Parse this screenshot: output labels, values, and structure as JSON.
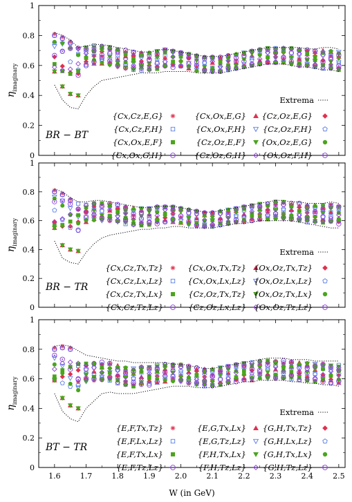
{
  "chart_data": [
    {
      "type": "scatter",
      "panel_label": "BR − BT",
      "xlabel": "",
      "ylabel": "η_imaginary",
      "xlim": [
        1.55,
        2.52
      ],
      "ylim": [
        0,
        1
      ],
      "yticks": [
        "0",
        "0.2",
        "0.4",
        "0.6",
        "0.8",
        "1"
      ],
      "legend_placement": "bottom-right",
      "extrema_label": "Extrema",
      "legend_entries": [
        "{Cx,Cz,E,G}",
        "{Cx,Ox,E,G}",
        "{Cz,Oz,E,G}",
        "{Cx,Cz,F,H}",
        "{Cx,Ox,F,H}",
        "{Cz,Oz,F,H}",
        "{Cx,Ox,E,F}",
        "{Cz,Oz,E,F}",
        "{Ox,Oz,E,G}",
        "{Cx,Ox,G,H}",
        "{Cz,Oz,G,H}",
        "{Ox,Oz,F,H}"
      ],
      "x": [
        1.6,
        1.625,
        1.65,
        1.675,
        1.7,
        1.725,
        1.75,
        1.775,
        1.8,
        1.825,
        1.85,
        1.875,
        1.9,
        1.925,
        1.95,
        1.975,
        2.0,
        2.025,
        2.05,
        2.075,
        2.1,
        2.125,
        2.15,
        2.175,
        2.2,
        2.225,
        2.25,
        2.275,
        2.3,
        2.325,
        2.35,
        2.375,
        2.4,
        2.425,
        2.45,
        2.475,
        2.5
      ],
      "extrema_upper": [
        0.82,
        0.8,
        0.77,
        0.72,
        0.73,
        0.74,
        0.74,
        0.73,
        0.72,
        0.71,
        0.7,
        0.69,
        0.69,
        0.7,
        0.71,
        0.7,
        0.69,
        0.68,
        0.67,
        0.66,
        0.66,
        0.66,
        0.67,
        0.68,
        0.69,
        0.7,
        0.71,
        0.72,
        0.72,
        0.72,
        0.72,
        0.72,
        0.71,
        0.71,
        0.72,
        0.72,
        0.71
      ],
      "extrema_lower": [
        0.47,
        0.37,
        0.32,
        0.31,
        0.4,
        0.46,
        0.5,
        0.51,
        0.52,
        0.53,
        0.54,
        0.55,
        0.55,
        0.55,
        0.56,
        0.56,
        0.56,
        0.56,
        0.55,
        0.55,
        0.55,
        0.55,
        0.56,
        0.57,
        0.58,
        0.59,
        0.6,
        0.61,
        0.61,
        0.61,
        0.6,
        0.59,
        0.59,
        0.58,
        0.57,
        0.57,
        0.56
      ],
      "band_mid": [
        0.68,
        0.66,
        0.64,
        0.63,
        0.66,
        0.67,
        0.67,
        0.66,
        0.65,
        0.64,
        0.63,
        0.63,
        0.63,
        0.64,
        0.65,
        0.65,
        0.65,
        0.64,
        0.62,
        0.61,
        0.61,
        0.61,
        0.62,
        0.63,
        0.64,
        0.65,
        0.65,
        0.66,
        0.66,
        0.66,
        0.66,
        0.65,
        0.65,
        0.64,
        0.64,
        0.64,
        0.63
      ],
      "band_half_width": 0.07
    },
    {
      "type": "scatter",
      "panel_label": "BR − TR",
      "xlabel": "",
      "ylabel": "η_imaginary",
      "xlim": [
        1.55,
        2.52
      ],
      "ylim": [
        0,
        1
      ],
      "yticks": [
        "0",
        "0.2",
        "0.4",
        "0.6",
        "0.8",
        "1"
      ],
      "legend_placement": "bottom-right",
      "extrema_label": "Extrema",
      "legend_entries": [
        "{Cx,Cz,Tx,Tz}",
        "{Cx,Ox,Tx,Tz}",
        "{Ox,Oz,Tx,Tz}",
        "{Cx,Cz,Lx,Lz}",
        "{Cx,Ox,Lx,Lz}",
        "{Ox,Oz,Lx,Lz}",
        "{Cx,Cz,Tx,Lx}",
        "{Cz,Oz,Tx,Tz}",
        "{Ox,Oz,Tx,Lx}",
        "{Cx,Cz,Tz,Lz}",
        "{Cz,Oz,Lx,Lz}",
        "{Ox,Oz,Tz,Lz}"
      ],
      "x": [
        1.6,
        1.625,
        1.65,
        1.675,
        1.7,
        1.725,
        1.75,
        1.775,
        1.8,
        1.825,
        1.85,
        1.875,
        1.9,
        1.925,
        1.95,
        1.975,
        2.0,
        2.025,
        2.05,
        2.075,
        2.1,
        2.125,
        2.15,
        2.175,
        2.2,
        2.225,
        2.25,
        2.275,
        2.3,
        2.325,
        2.35,
        2.375,
        2.4,
        2.425,
        2.45,
        2.475,
        2.5
      ],
      "extrema_upper": [
        0.82,
        0.8,
        0.76,
        0.73,
        0.73,
        0.74,
        0.74,
        0.73,
        0.72,
        0.71,
        0.7,
        0.69,
        0.69,
        0.7,
        0.7,
        0.7,
        0.69,
        0.68,
        0.67,
        0.66,
        0.66,
        0.67,
        0.68,
        0.69,
        0.7,
        0.71,
        0.72,
        0.73,
        0.74,
        0.74,
        0.73,
        0.73,
        0.72,
        0.72,
        0.72,
        0.73,
        0.72
      ],
      "extrema_lower": [
        0.46,
        0.34,
        0.31,
        0.3,
        0.38,
        0.44,
        0.48,
        0.5,
        0.51,
        0.52,
        0.53,
        0.54,
        0.54,
        0.55,
        0.55,
        0.56,
        0.56,
        0.55,
        0.55,
        0.55,
        0.55,
        0.56,
        0.57,
        0.58,
        0.58,
        0.59,
        0.6,
        0.6,
        0.6,
        0.6,
        0.6,
        0.59,
        0.58,
        0.57,
        0.56,
        0.55,
        0.55
      ],
      "band_mid": [
        0.67,
        0.65,
        0.63,
        0.62,
        0.65,
        0.66,
        0.66,
        0.66,
        0.65,
        0.64,
        0.63,
        0.63,
        0.63,
        0.64,
        0.65,
        0.65,
        0.64,
        0.63,
        0.62,
        0.61,
        0.61,
        0.62,
        0.63,
        0.64,
        0.65,
        0.65,
        0.66,
        0.66,
        0.67,
        0.67,
        0.66,
        0.66,
        0.65,
        0.65,
        0.65,
        0.65,
        0.64
      ],
      "band_half_width": 0.07
    },
    {
      "type": "scatter",
      "panel_label": "BT − TR",
      "xlabel": "W (in GeV)",
      "ylabel": "η_imaginary",
      "xlim": [
        1.55,
        2.52
      ],
      "ylim": [
        0,
        1
      ],
      "xticks": [
        "1.6",
        "1.7",
        "1.8",
        "1.9",
        "2.0",
        "2.1",
        "2.2",
        "2.3",
        "2.4",
        "2.5"
      ],
      "yticks": [
        "0",
        "0.2",
        "0.4",
        "0.6",
        "0.8",
        "1"
      ],
      "legend_placement": "bottom-right",
      "extrema_label": "Extrema",
      "legend_entries": [
        "{E,F,Tx,Tz}",
        "{E,G,Tx,Lx}",
        "{G,H,Tx,Tz}",
        "{E,F,Lx,Lz}",
        "{E,G,Tz,Lz}",
        "{G,H,Lx,Lz}",
        "{E,F,Tx,Lx}",
        "{F,H,Tx,Lx}",
        "{G,H,Tx,Lx}",
        "{E,F,Tz,Lz}",
        "{F,H,Tz,Lz}",
        "{G,H,Tz,Lz}"
      ],
      "x": [
        1.6,
        1.625,
        1.65,
        1.675,
        1.7,
        1.725,
        1.75,
        1.775,
        1.8,
        1.825,
        1.85,
        1.875,
        1.9,
        1.925,
        1.95,
        1.975,
        2.0,
        2.025,
        2.05,
        2.075,
        2.1,
        2.125,
        2.15,
        2.175,
        2.2,
        2.225,
        2.25,
        2.275,
        2.3,
        2.325,
        2.35,
        2.375,
        2.4,
        2.425,
        2.45,
        2.475,
        2.5
      ],
      "extrema_upper": [
        0.82,
        0.83,
        0.82,
        0.79,
        0.76,
        0.75,
        0.74,
        0.73,
        0.72,
        0.72,
        0.71,
        0.71,
        0.71,
        0.71,
        0.71,
        0.7,
        0.7,
        0.69,
        0.68,
        0.67,
        0.67,
        0.68,
        0.69,
        0.7,
        0.71,
        0.72,
        0.73,
        0.74,
        0.74,
        0.74,
        0.73,
        0.73,
        0.73,
        0.72,
        0.72,
        0.72,
        0.72
      ],
      "extrema_lower": [
        0.5,
        0.38,
        0.33,
        0.31,
        0.4,
        0.45,
        0.5,
        0.51,
        0.5,
        0.5,
        0.5,
        0.51,
        0.52,
        0.53,
        0.54,
        0.55,
        0.55,
        0.55,
        0.54,
        0.54,
        0.54,
        0.55,
        0.56,
        0.57,
        0.58,
        0.58,
        0.59,
        0.59,
        0.59,
        0.59,
        0.58,
        0.58,
        0.57,
        0.57,
        0.56,
        0.56,
        0.55
      ],
      "band_mid": [
        0.67,
        0.66,
        0.63,
        0.61,
        0.64,
        0.65,
        0.65,
        0.65,
        0.63,
        0.62,
        0.61,
        0.62,
        0.62,
        0.63,
        0.64,
        0.64,
        0.64,
        0.63,
        0.62,
        0.61,
        0.61,
        0.62,
        0.63,
        0.64,
        0.65,
        0.65,
        0.66,
        0.66,
        0.66,
        0.66,
        0.66,
        0.65,
        0.65,
        0.64,
        0.64,
        0.63,
        0.63
      ],
      "band_half_width": 0.07
    }
  ],
  "series_styles": [
    {
      "color": "#e0304e",
      "marker": "star"
    },
    {
      "color": "#e0304e",
      "marker": "tri-up"
    },
    {
      "color": "#e0304e",
      "marker": "diamond-filled"
    },
    {
      "color": "#5b7fe6",
      "marker": "square-open"
    },
    {
      "color": "#5b7fe6",
      "marker": "tri-down-open"
    },
    {
      "color": "#5b7fe6",
      "marker": "pentagon-open"
    },
    {
      "color": "#4aa51c",
      "marker": "square-filled"
    },
    {
      "color": "#4aa51c",
      "marker": "tri-down-filled"
    },
    {
      "color": "#4aa51c",
      "marker": "circle-filled"
    },
    {
      "color": "#8a3fd6",
      "marker": "circle-open"
    },
    {
      "color": "#8a3fd6",
      "marker": "diamond-open"
    },
    {
      "color": "#8a3fd6",
      "marker": "circle-dot"
    }
  ]
}
